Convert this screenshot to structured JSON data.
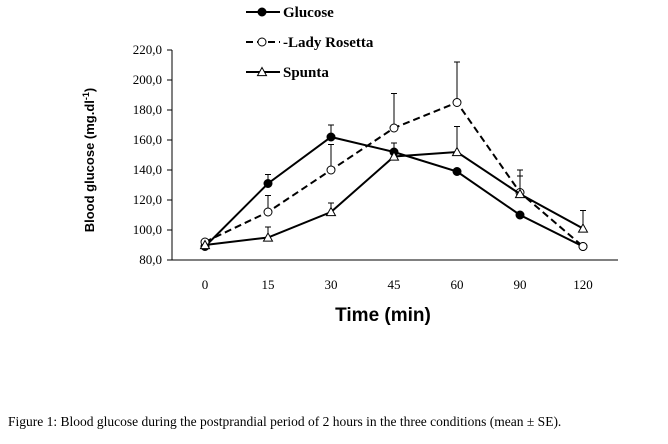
{
  "chart_data": {
    "type": "line",
    "categories": [
      "0",
      "15",
      "30",
      "45",
      "60",
      "90",
      "120"
    ],
    "xlabel": "Time (min)",
    "ylabel_main": "Blood glucose (mg.dl",
    "ylabel_sup": "-1",
    "ylabel_close": ")",
    "ylim": [
      80,
      220
    ],
    "yticks": [
      "80,0",
      "100,0",
      "120,0",
      "140,0",
      "160,0",
      "180,0",
      "200,0",
      "220,0"
    ],
    "grid": false,
    "legend_position": "top",
    "series": [
      {
        "name": "Glucose",
        "marker": "filled-circle",
        "dash": "solid",
        "values": [
          89,
          131,
          162,
          152,
          139,
          110,
          89
        ],
        "errors": [
          0,
          6,
          8,
          6,
          0,
          0,
          0
        ]
      },
      {
        "name": "Lady Rosetta",
        "marker": "open-circle",
        "dash": "dashed",
        "values": [
          92,
          112,
          140,
          168,
          185,
          125,
          89
        ],
        "errors": [
          0,
          11,
          17,
          23,
          27,
          15,
          0
        ]
      },
      {
        "name": "Spunta",
        "marker": "open-triangle",
        "dash": "solid",
        "values": [
          90,
          95,
          112,
          149,
          152,
          124,
          101
        ],
        "errors": [
          0,
          7,
          6,
          0,
          17,
          12,
          12
        ]
      }
    ]
  },
  "caption": "Figure 1: Blood glucose during the postprandial period of 2 hours in the three conditions (mean ± SE)."
}
